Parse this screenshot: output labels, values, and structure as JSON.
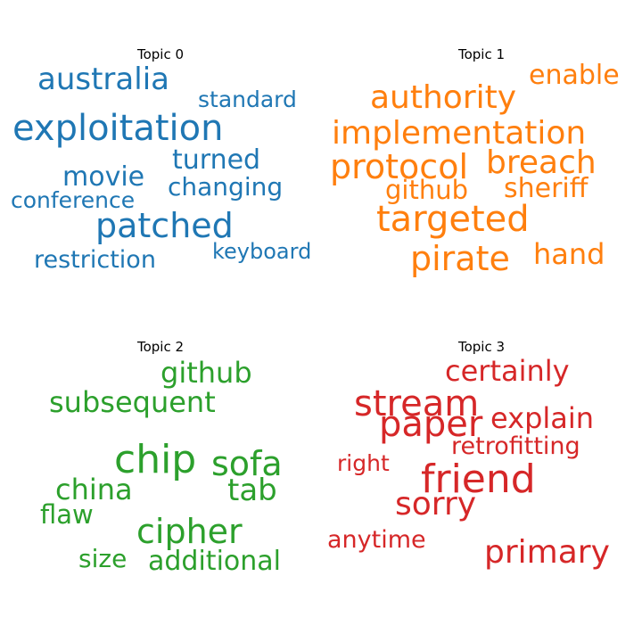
{
  "chart_data": {
    "type": "wordcloud",
    "topics": [
      {
        "title": "Topic 0",
        "color": "#1f77b4",
        "words": [
          "australia",
          "standard",
          "exploitation",
          "turned",
          "movie",
          "changing",
          "conference",
          "patched",
          "keyboard",
          "restriction"
        ]
      },
      {
        "title": "Topic 1",
        "color": "#ff7f0e",
        "words": [
          "enable",
          "authority",
          "implementation",
          "protocol",
          "breach",
          "github",
          "sheriff",
          "targeted",
          "pirate",
          "hand"
        ]
      },
      {
        "title": "Topic 2",
        "color": "#2ca02c",
        "words": [
          "github",
          "subsequent",
          "chip",
          "sofa",
          "china",
          "tab",
          "flaw",
          "cipher",
          "size",
          "additional"
        ]
      },
      {
        "title": "Topic 3",
        "color": "#d62728",
        "words": [
          "certainly",
          "stream",
          "paper",
          "explain",
          "retrofitting",
          "right",
          "friend",
          "sorry",
          "anytime",
          "primary"
        ]
      }
    ]
  }
}
